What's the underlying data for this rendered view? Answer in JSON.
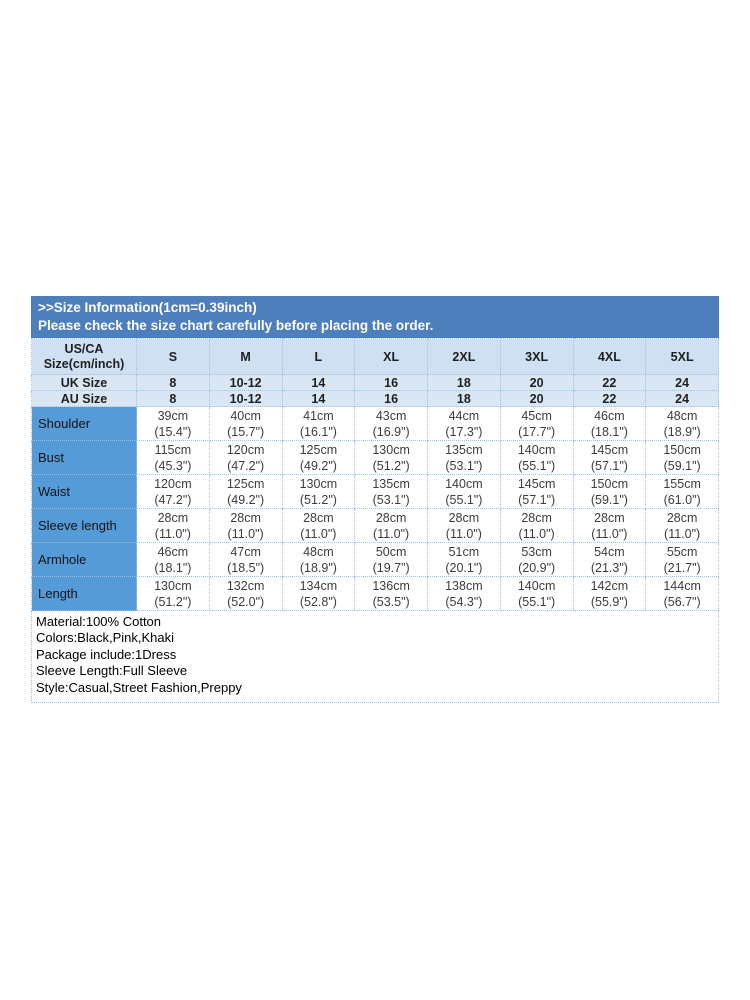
{
  "header": {
    "line1": ">>Size Information(1cm=0.39inch)",
    "line2": "Please check the size chart carefully before placing the order."
  },
  "chart_data": {
    "type": "table",
    "title": ">>Size Information(1cm=0.39inch)",
    "subtitle": "Please check the size chart carefully before placing the order.",
    "corner_header": "US/CA\nSize(cm/inch)",
    "size_headers": [
      "S",
      "M",
      "L",
      "XL",
      "2XL",
      "3XL",
      "4XL",
      "5XL"
    ],
    "system_rows": [
      {
        "label": "UK Size",
        "values": [
          "8",
          "10-12",
          "14",
          "16",
          "18",
          "20",
          "22",
          "24"
        ]
      },
      {
        "label": "AU Size",
        "values": [
          "8",
          "10-12",
          "14",
          "16",
          "18",
          "20",
          "22",
          "24"
        ]
      }
    ],
    "measurement_rows": [
      {
        "label": "Shoulder",
        "values": [
          "39cm\n(15.4\")",
          "40cm\n(15.7\")",
          "41cm\n(16.1\")",
          "43cm\n(16.9\")",
          "44cm\n(17.3\")",
          "45cm\n(17.7\")",
          "46cm\n(18.1\")",
          "48cm\n(18.9\")"
        ]
      },
      {
        "label": "Bust",
        "values": [
          "115cm\n(45.3\")",
          "120cm\n(47.2\")",
          "125cm\n(49.2\")",
          "130cm\n(51.2\")",
          "135cm\n(53.1\")",
          "140cm\n(55.1\")",
          "145cm\n(57.1\")",
          "150cm\n(59.1\")"
        ]
      },
      {
        "label": "Waist",
        "values": [
          "120cm\n(47.2\")",
          "125cm\n(49.2\")",
          "130cm\n(51.2\")",
          "135cm\n(53.1\")",
          "140cm\n(55.1\")",
          "145cm\n(57.1\")",
          "150cm\n(59.1\")",
          "155cm\n(61.0\")"
        ]
      },
      {
        "label": "Sleeve length",
        "values": [
          "28cm\n(11.0\")",
          "28cm\n(11.0\")",
          "28cm\n(11.0\")",
          "28cm\n(11.0\")",
          "28cm\n(11.0\")",
          "28cm\n(11.0\")",
          "28cm\n(11.0\")",
          "28cm\n(11.0\")"
        ]
      },
      {
        "label": "Armhole",
        "values": [
          "46cm\n(18.1\")",
          "47cm\n(18.5\")",
          "48cm\n(18.9\")",
          "50cm\n(19.7\")",
          "51cm\n(20.1\")",
          "53cm\n(20.9\")",
          "54cm\n(21.3\")",
          "55cm\n(21.7\")"
        ]
      },
      {
        "label": "Length",
        "values": [
          "130cm\n(51.2\")",
          "132cm\n(52.0\")",
          "134cm\n(52.8\")",
          "136cm\n(53.5\")",
          "138cm\n(54.3\")",
          "140cm\n(55.1\")",
          "142cm\n(55.9\")",
          "144cm\n(56.7\")"
        ]
      }
    ]
  },
  "footer_lines": [
    "Material:100% Cotton",
    "Colors:Black,Pink,Khaki",
    "Package include:1Dress",
    "Sleeve Length:Full Sleeve",
    "Style:Casual,Street Fashion,Preppy"
  ],
  "colors": {
    "title_bar_bg": "#4d7fbd",
    "title_bar_text": "#ffffff",
    "size_header_bg": "#cfe0f2",
    "system_row_bg": "#d9e6f4",
    "label_column_bg": "#549bd8",
    "cell_border": "#9cc3e6",
    "cell_text": "#3d3d3d",
    "page_bg": "#ffffff"
  }
}
